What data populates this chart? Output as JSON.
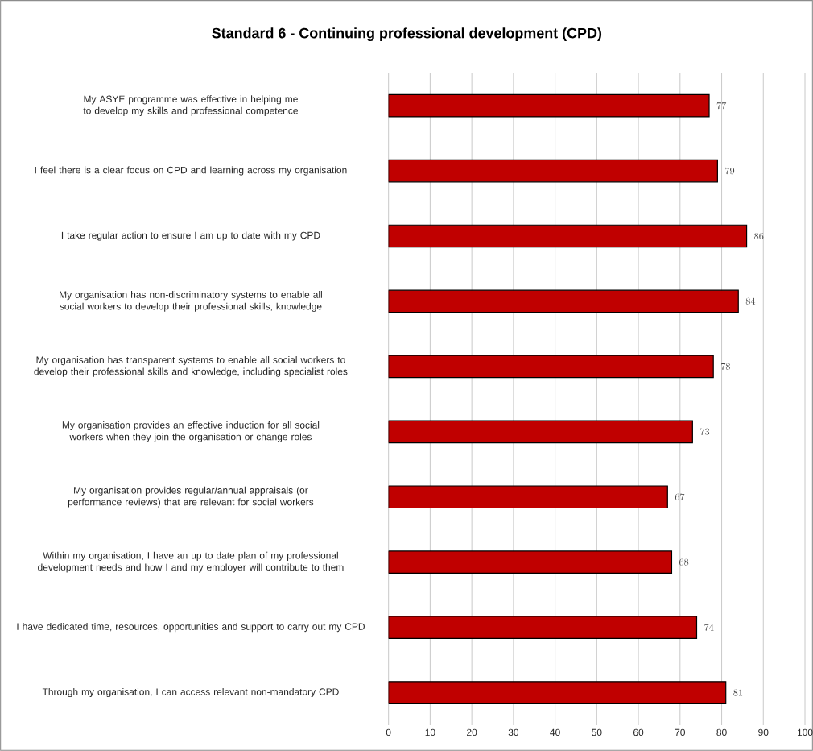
{
  "chart_data": {
    "type": "bar",
    "orientation": "horizontal",
    "title": "Standard 6 - Continuing professional development (CPD)",
    "categories": [
      "My ASYE programme was effective in helping me to develop my skills and professional competence",
      "I feel there is a clear focus on CPD and learning across my organisation",
      "I take regular action to ensure I am up to date with my CPD",
      "My organisation has non-discriminatory systems to enable all social workers to develop their professional skills, knowledge",
      "My organisation has transparent systems to enable all social workers to develop their professional skills and knowledge, including specialist roles",
      "My organisation provides an effective induction for all social workers when they join the organisation or change roles",
      "My organisation provides regular/annual appraisals (or performance reviews) that are relevant for social workers",
      "Within my organisation, I have an up to date plan of my professional development needs and how I and my employer will contribute to them",
      "I have dedicated time, resources, opportunities and support to carry out my CPD",
      "Through my organisation, I can access relevant non-mandatory CPD"
    ],
    "values": [
      77,
      79,
      86,
      84,
      78,
      73,
      67,
      68,
      74,
      81
    ],
    "color": "#c00000",
    "xlim": [
      0,
      100
    ],
    "xticks": [
      0,
      10,
      20,
      30,
      40,
      50,
      60,
      70,
      80,
      90,
      100
    ],
    "grid": "x",
    "data_labels": true
  }
}
